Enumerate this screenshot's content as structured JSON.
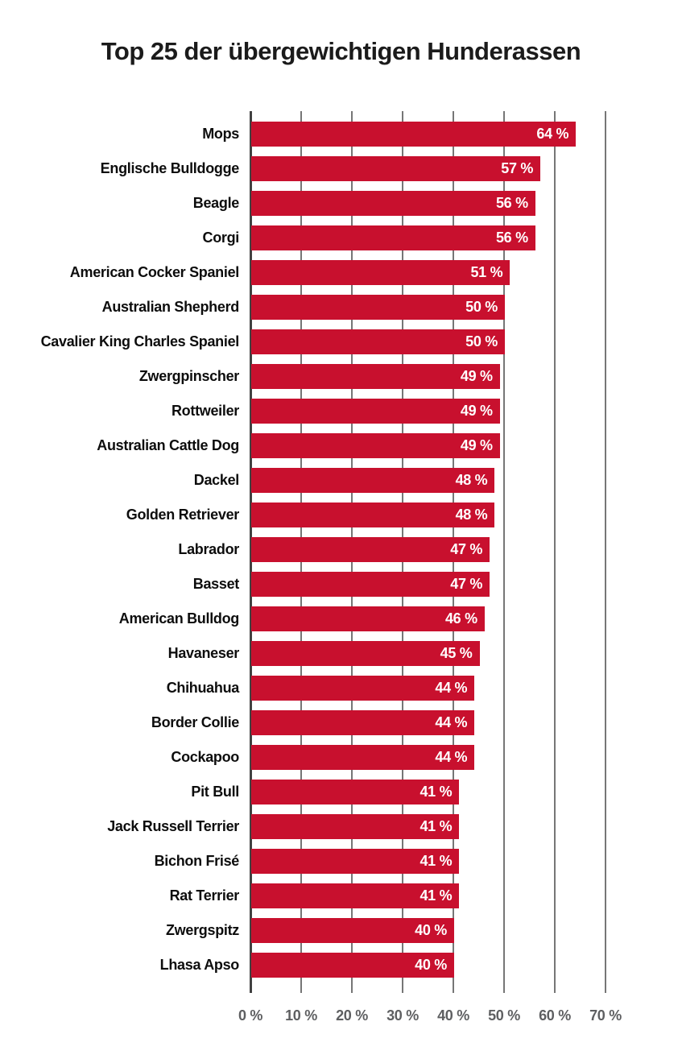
{
  "title": "Top 25 der übergewichtigen Hunderassen",
  "colors": {
    "background": "#ffffff",
    "bar": "#C8102E",
    "title_text": "#1b1b1b",
    "category_text": "#0d0d0d",
    "value_text": "#ffffff",
    "tick_text": "#5e5f61",
    "gridline": "#767676",
    "axis_line": "#414141"
  },
  "chart_data": {
    "type": "bar",
    "orientation": "horizontal",
    "title": "Top 25 der übergewichtigen Hunderassen",
    "categories": [
      "Mops",
      "Englische Bulldogge",
      "Beagle",
      "Corgi",
      "American Cocker Spaniel",
      "Australian Shepherd",
      "Cavalier King Charles Spaniel",
      "Zwergpinscher",
      "Rottweiler",
      "Australian Cattle Dog",
      "Dackel",
      "Golden Retriever",
      "Labrador",
      "Basset",
      "American Bulldog",
      "Havaneser",
      "Chihuahua",
      "Border Collie",
      "Cockapoo",
      "Pit Bull",
      "Jack Russell Terrier",
      "Bichon Frisé",
      "Rat Terrier",
      "Zwergspitz",
      "Lhasa Apso"
    ],
    "values": [
      64,
      57,
      56,
      56,
      51,
      50,
      50,
      49,
      49,
      49,
      48,
      48,
      47,
      47,
      46,
      45,
      44,
      44,
      44,
      41,
      41,
      41,
      41,
      40,
      40
    ],
    "value_labels": [
      "64 %",
      "57 %",
      "56 %",
      "56 %",
      "51 %",
      "50 %",
      "50 %",
      "49 %",
      "49 %",
      "49 %",
      "48 %",
      "48 %",
      "47 %",
      "47 %",
      "46 %",
      "45 %",
      "44 %",
      "44 %",
      "44 %",
      "41 %",
      "41 %",
      "41 %",
      "41 %",
      "40 %",
      "40 %"
    ],
    "xlabel": "",
    "ylabel": "",
    "xlim": [
      0,
      70
    ],
    "x_ticks": [
      0,
      10,
      20,
      30,
      40,
      50,
      60,
      70
    ],
    "x_tick_labels": [
      "0 %",
      "10 %",
      "20 %",
      "30 %",
      "40 %",
      "50 %",
      "60 %",
      "70 %"
    ],
    "grid": "vertical-gridlines",
    "legend": "none"
  }
}
